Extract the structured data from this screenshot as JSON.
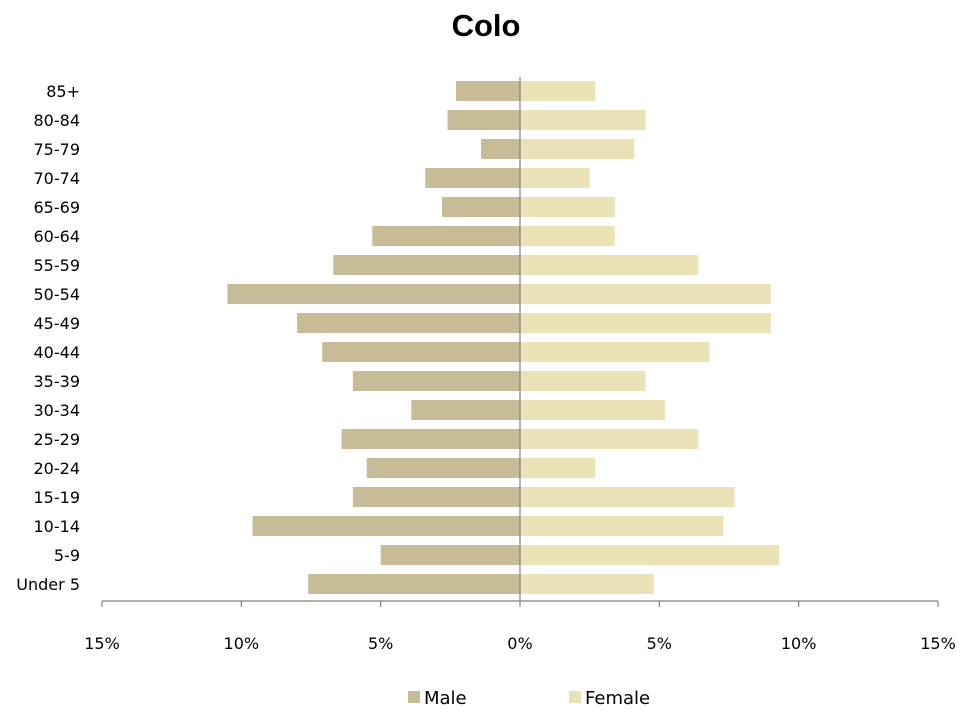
{
  "chart_data": {
    "type": "bar",
    "orientation": "horizontal",
    "layout": "population-pyramid",
    "title": "Colo",
    "categories": [
      "85+",
      "80-84",
      "75-79",
      "70-74",
      "65-69",
      "60-64",
      "55-59",
      "50-54",
      "45-49",
      "40-44",
      "35-39",
      "30-34",
      "25-29",
      "20-24",
      "15-19",
      "10-14",
      "5-9",
      "Under 5"
    ],
    "series": [
      {
        "name": "Male",
        "color": "#c8bb98",
        "side": "left",
        "values": [
          2.3,
          2.6,
          1.4,
          3.4,
          2.8,
          5.3,
          6.7,
          10.5,
          8.0,
          7.1,
          6.0,
          3.9,
          6.4,
          5.5,
          6.0,
          9.6,
          5.0,
          7.6
        ]
      },
      {
        "name": "Female",
        "color": "#ebe2b8",
        "side": "right",
        "values": [
          2.7,
          4.5,
          4.1,
          2.5,
          3.4,
          3.4,
          6.4,
          9.0,
          9.0,
          6.8,
          4.5,
          5.2,
          6.4,
          2.7,
          7.7,
          7.3,
          9.3,
          4.8
        ]
      }
    ],
    "x_ticks": [
      "15%",
      "10%",
      "5%",
      "0%",
      "5%",
      "10%",
      "15%"
    ],
    "xlim": [
      -15,
      15
    ],
    "grid": false,
    "legend": "bottom"
  }
}
